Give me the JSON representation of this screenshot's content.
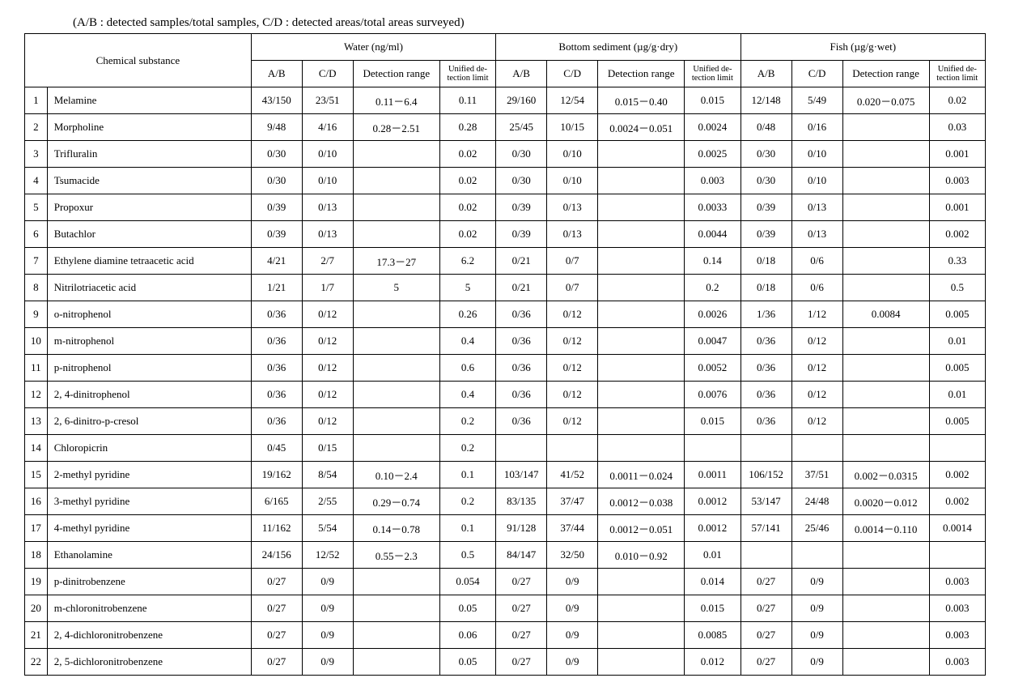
{
  "caption": "(A/B : detected samples/total samples, C/D : detected areas/total areas surveyed)",
  "headers": {
    "chemical": "Chemical substance",
    "water": "Water (ng/ml)",
    "sediment": "Bottom sediment (µg/g·dry)",
    "fish": "Fish (µg/g·wet)",
    "ab": "A/B",
    "cd": "C/D",
    "range": "Detection range",
    "limit": "Unified de- tection limit"
  },
  "rows": [
    {
      "n": "1",
      "name": "Melamine",
      "w": [
        "43/150",
        "23/51",
        "0.11－6.4",
        "0.11"
      ],
      "s": [
        "29/160",
        "12/54",
        "0.015－0.40",
        "0.015"
      ],
      "f": [
        "12/148",
        "5/49",
        "0.020－0.075",
        "0.02"
      ]
    },
    {
      "n": "2",
      "name": "Morpholine",
      "w": [
        "9/48",
        "4/16",
        "0.28－2.51",
        "0.28"
      ],
      "s": [
        "25/45",
        "10/15",
        "0.0024－0.051",
        "0.0024"
      ],
      "f": [
        "0/48",
        "0/16",
        "",
        "0.03"
      ]
    },
    {
      "n": "3",
      "name": "Trifluralin",
      "w": [
        "0/30",
        "0/10",
        "",
        "0.02"
      ],
      "s": [
        "0/30",
        "0/10",
        "",
        "0.0025"
      ],
      "f": [
        "0/30",
        "0/10",
        "",
        "0.001"
      ]
    },
    {
      "n": "4",
      "name": "Tsumacide",
      "w": [
        "0/30",
        "0/10",
        "",
        "0.02"
      ],
      "s": [
        "0/30",
        "0/10",
        "",
        "0.003"
      ],
      "f": [
        "0/30",
        "0/10",
        "",
        "0.003"
      ]
    },
    {
      "n": "5",
      "name": "Propoxur",
      "w": [
        "0/39",
        "0/13",
        "",
        "0.02"
      ],
      "s": [
        "0/39",
        "0/13",
        "",
        "0.0033"
      ],
      "f": [
        "0/39",
        "0/13",
        "",
        "0.001"
      ]
    },
    {
      "n": "6",
      "name": "Butachlor",
      "w": [
        "0/39",
        "0/13",
        "",
        "0.02"
      ],
      "s": [
        "0/39",
        "0/13",
        "",
        "0.0044"
      ],
      "f": [
        "0/39",
        "0/13",
        "",
        "0.002"
      ]
    },
    {
      "n": "7",
      "name": "Ethylene diamine tetraacetic acid",
      "w": [
        "4/21",
        "2/7",
        "17.3－27",
        "6.2"
      ],
      "s": [
        "0/21",
        "0/7",
        "",
        "0.14"
      ],
      "f": [
        "0/18",
        "0/6",
        "",
        "0.33"
      ]
    },
    {
      "n": "8",
      "name": "Nitrilotriacetic acid",
      "w": [
        "1/21",
        "1/7",
        "5",
        "5"
      ],
      "s": [
        "0/21",
        "0/7",
        "",
        "0.2"
      ],
      "f": [
        "0/18",
        "0/6",
        "",
        "0.5"
      ]
    },
    {
      "n": "9",
      "name": "o-nitrophenol",
      "w": [
        "0/36",
        "0/12",
        "",
        "0.26"
      ],
      "s": [
        "0/36",
        "0/12",
        "",
        "0.0026"
      ],
      "f": [
        "1/36",
        "1/12",
        "0.0084",
        "0.005"
      ]
    },
    {
      "n": "10",
      "name": "m-nitrophenol",
      "w": [
        "0/36",
        "0/12",
        "",
        "0.4"
      ],
      "s": [
        "0/36",
        "0/12",
        "",
        "0.0047"
      ],
      "f": [
        "0/36",
        "0/12",
        "",
        "0.01"
      ]
    },
    {
      "n": "11",
      "name": "p-nitrophenol",
      "w": [
        "0/36",
        "0/12",
        "",
        "0.6"
      ],
      "s": [
        "0/36",
        "0/12",
        "",
        "0.0052"
      ],
      "f": [
        "0/36",
        "0/12",
        "",
        "0.005"
      ]
    },
    {
      "n": "12",
      "name": "2, 4-dinitrophenol",
      "w": [
        "0/36",
        "0/12",
        "",
        "0.4"
      ],
      "s": [
        "0/36",
        "0/12",
        "",
        "0.0076"
      ],
      "f": [
        "0/36",
        "0/12",
        "",
        "0.01"
      ]
    },
    {
      "n": "13",
      "name": "2, 6-dinitro-p-cresol",
      "w": [
        "0/36",
        "0/12",
        "",
        "0.2"
      ],
      "s": [
        "0/36",
        "0/12",
        "",
        "0.015"
      ],
      "f": [
        "0/36",
        "0/12",
        "",
        "0.005"
      ]
    },
    {
      "n": "14",
      "name": "Chloropicrin",
      "w": [
        "0/45",
        "0/15",
        "",
        "0.2"
      ],
      "s": [
        "",
        "",
        "",
        ""
      ],
      "f": [
        "",
        "",
        "",
        ""
      ]
    },
    {
      "n": "15",
      "name": "2-methyl pyridine",
      "w": [
        "19/162",
        "8/54",
        "0.10－2.4",
        "0.1"
      ],
      "s": [
        "103/147",
        "41/52",
        "0.0011－0.024",
        "0.0011"
      ],
      "f": [
        "106/152",
        "37/51",
        "0.002－0.0315",
        "0.002"
      ]
    },
    {
      "n": "16",
      "name": "3-methyl pyridine",
      "w": [
        "6/165",
        "2/55",
        "0.29－0.74",
        "0.2"
      ],
      "s": [
        "83/135",
        "37/47",
        "0.0012－0.038",
        "0.0012"
      ],
      "f": [
        "53/147",
        "24/48",
        "0.0020－0.012",
        "0.002"
      ]
    },
    {
      "n": "17",
      "name": "4-methyl pyridine",
      "w": [
        "11/162",
        "5/54",
        "0.14－0.78",
        "0.1"
      ],
      "s": [
        "91/128",
        "37/44",
        "0.0012－0.051",
        "0.0012"
      ],
      "f": [
        "57/141",
        "25/46",
        "0.0014－0.110",
        "0.0014"
      ]
    },
    {
      "n": "18",
      "name": "Ethanolamine",
      "w": [
        "24/156",
        "12/52",
        "0.55－2.3",
        "0.5"
      ],
      "s": [
        "84/147",
        "32/50",
        "0.010－0.92",
        "0.01"
      ],
      "f": [
        "",
        "",
        "",
        ""
      ]
    },
    {
      "n": "19",
      "name": "p-dinitrobenzene",
      "w": [
        "0/27",
        "0/9",
        "",
        "0.054"
      ],
      "s": [
        "0/27",
        "0/9",
        "",
        "0.014"
      ],
      "f": [
        "0/27",
        "0/9",
        "",
        "0.003"
      ]
    },
    {
      "n": "20",
      "name": "m-chloronitrobenzene",
      "w": [
        "0/27",
        "0/9",
        "",
        "0.05"
      ],
      "s": [
        "0/27",
        "0/9",
        "",
        "0.015"
      ],
      "f": [
        "0/27",
        "0/9",
        "",
        "0.003"
      ]
    },
    {
      "n": "21",
      "name": "2, 4-dichloronitrobenzene",
      "w": [
        "0/27",
        "0/9",
        "",
        "0.06"
      ],
      "s": [
        "0/27",
        "0/9",
        "",
        "0.0085"
      ],
      "f": [
        "0/27",
        "0/9",
        "",
        "0.003"
      ]
    },
    {
      "n": "22",
      "name": "2, 5-dichloronitrobenzene",
      "w": [
        "0/27",
        "0/9",
        "",
        "0.05"
      ],
      "s": [
        "0/27",
        "0/9",
        "",
        "0.012"
      ],
      "f": [
        "0/27",
        "0/9",
        "",
        "0.003"
      ]
    }
  ]
}
